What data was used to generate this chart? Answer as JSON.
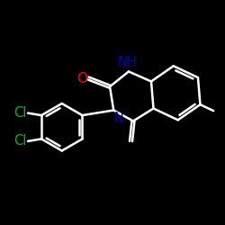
{
  "background": "#000000",
  "bond_color": "#ffffff",
  "atom_colors": {
    "O": "#ff0000",
    "N": "#0000cd",
    "Cl": "#00bb00",
    "C": "#ffffff"
  },
  "bond_width": 1.8,
  "font_size": 10.5
}
